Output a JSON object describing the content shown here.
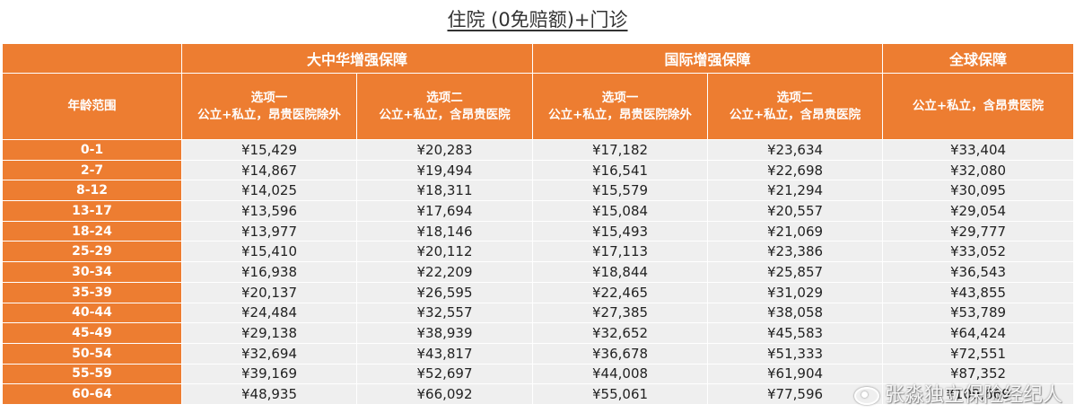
{
  "title": "住院 (0免赔额)+门诊",
  "table": {
    "age_header": "年龄范围",
    "groups": [
      {
        "label": "大中华增强保障"
      },
      {
        "label": "国际增强保障"
      },
      {
        "label": "全球保障"
      }
    ],
    "options": [
      {
        "line1": "选项一",
        "line2": "公立+私立，昂贵医院除外"
      },
      {
        "line1": "选项二",
        "line2": "公立+私立，含昂贵医院"
      },
      {
        "line1": "选项一",
        "line2": "公立+私立，昂贵医院除外"
      },
      {
        "line1": "选项二",
        "line2": "公立+私立，含昂贵医院"
      },
      {
        "line1": "",
        "line2": "公立+私立，含昂贵医院"
      }
    ],
    "rows": [
      {
        "age": "0-1",
        "values": [
          "¥15,429",
          "¥20,283",
          "¥17,182",
          "¥23,634",
          "¥33,404"
        ]
      },
      {
        "age": "2-7",
        "values": [
          "¥14,867",
          "¥19,494",
          "¥16,541",
          "¥22,698",
          "¥32,080"
        ]
      },
      {
        "age": "8-12",
        "values": [
          "¥14,025",
          "¥18,311",
          "¥15,579",
          "¥21,294",
          "¥30,095"
        ]
      },
      {
        "age": "13-17",
        "values": [
          "¥13,596",
          "¥17,694",
          "¥15,084",
          "¥20,557",
          "¥29,054"
        ]
      },
      {
        "age": "18-24",
        "values": [
          "¥13,977",
          "¥18,146",
          "¥15,493",
          "¥21,069",
          "¥29,777"
        ]
      },
      {
        "age": "25-29",
        "values": [
          "¥15,410",
          "¥20,112",
          "¥17,113",
          "¥23,386",
          "¥33,052"
        ]
      },
      {
        "age": "30-34",
        "values": [
          "¥16,938",
          "¥22,209",
          "¥18,844",
          "¥25,857",
          "¥36,543"
        ]
      },
      {
        "age": "35-39",
        "values": [
          "¥20,137",
          "¥26,595",
          "¥22,465",
          "¥31,029",
          "¥43,855"
        ]
      },
      {
        "age": "40-44",
        "values": [
          "¥24,484",
          "¥32,557",
          "¥27,385",
          "¥38,058",
          "¥53,789"
        ]
      },
      {
        "age": "45-49",
        "values": [
          "¥29,138",
          "¥38,939",
          "¥32,652",
          "¥45,583",
          "¥64,424"
        ]
      },
      {
        "age": "50-54",
        "values": [
          "¥32,694",
          "¥43,817",
          "¥36,678",
          "¥51,333",
          "¥72,551"
        ]
      },
      {
        "age": "55-59",
        "values": [
          "¥39,169",
          "¥52,697",
          "¥44,008",
          "¥61,904",
          "¥87,352"
        ]
      },
      {
        "age": "60-64",
        "values": [
          "¥48,935",
          "¥66,092",
          "¥55,061",
          "¥77,596",
          "¥109,669"
        ]
      }
    ]
  },
  "watermark": {
    "text": "张淼独立保险经纪人",
    "icon": "weibo-icon"
  },
  "colors": {
    "header": "#ED7D31",
    "cell": "#EFEFEF"
  }
}
